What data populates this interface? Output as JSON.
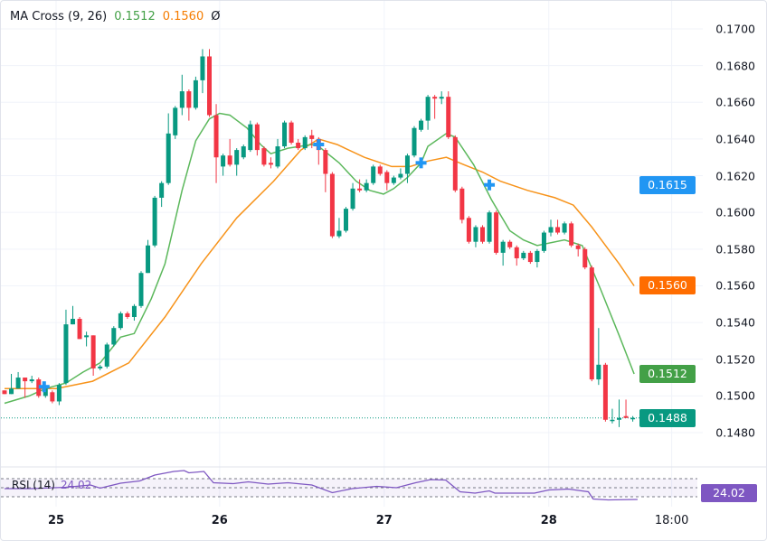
{
  "legend": {
    "name": "MA Cross (9, 26)",
    "fast_value": "0.1512",
    "slow_value": "0.1560",
    "symbol": "Ø"
  },
  "rsi": {
    "label": "RSI (14)",
    "value": "24.02",
    "levels": [
      70,
      50,
      30
    ]
  },
  "colors": {
    "up": "#089981",
    "down": "#f23645",
    "fast_ma": "#5cb85c",
    "slow_ma": "#f7931a",
    "cross": "#2196f3",
    "rsi": "#7e57c2",
    "last_price": "#089981"
  },
  "price_tags": [
    {
      "label": "0.1615",
      "value": 0.1615,
      "color": "#2196f3"
    },
    {
      "label": "0.1560",
      "value": 0.156,
      "color": "#ff6d00"
    },
    {
      "label": "0.1512",
      "value": 0.1512,
      "color": "#43a047"
    },
    {
      "label": "0.1488",
      "value": 0.1488,
      "color": "#089981"
    }
  ],
  "rsi_tag": "24.02",
  "chart_data": {
    "type": "candlestick",
    "title": "MA Cross (9, 26)",
    "ylim": [
      0.148,
      0.17
    ],
    "grid": true,
    "y_ticks": [
      "0.1700",
      "0.1680",
      "0.1660",
      "0.1640",
      "0.1620",
      "0.1600",
      "0.1580",
      "0.1560",
      "0.1540",
      "0.1520",
      "0.1500",
      "0.1480"
    ],
    "x_ticks": [
      {
        "label": "25",
        "x": 7.55
      },
      {
        "label": "26",
        "x": 31.5
      },
      {
        "label": "27",
        "x": 55.6
      },
      {
        "label": "28",
        "x": 79.7
      },
      {
        "label": "18:00",
        "x": 97.7
      }
    ],
    "candles_ohlc": [
      [
        0.1503,
        0.1503,
        0.1501,
        0.1501
      ],
      [
        0.1501,
        0.1512,
        0.1501,
        0.1504
      ],
      [
        0.1504,
        0.1513,
        0.1504,
        0.151
      ],
      [
        0.151,
        0.151,
        0.1499,
        0.1508
      ],
      [
        0.1508,
        0.1511,
        0.1507,
        0.1509
      ],
      [
        0.1509,
        0.151,
        0.1499,
        0.15
      ],
      [
        0.15,
        0.1505,
        0.1499,
        0.1504
      ],
      [
        0.1502,
        0.1503,
        0.1496,
        0.1497
      ],
      [
        0.1497,
        0.1507,
        0.1495,
        0.1506
      ],
      [
        0.1507,
        0.1547,
        0.1506,
        0.1539
      ],
      [
        0.1539,
        0.1549,
        0.1539,
        0.1542
      ],
      [
        0.1542,
        0.1543,
        0.1531,
        0.1531
      ],
      [
        0.1532,
        0.1535,
        0.1527,
        0.1533
      ],
      [
        0.1533,
        0.1533,
        0.1511,
        0.1515
      ],
      [
        0.1515,
        0.1517,
        0.1514,
        0.1516
      ],
      [
        0.1516,
        0.1529,
        0.1515,
        0.1528
      ],
      [
        0.1528,
        0.1538,
        0.1527,
        0.1537
      ],
      [
        0.1537,
        0.1546,
        0.1536,
        0.1545
      ],
      [
        0.1545,
        0.1546,
        0.1542,
        0.1543
      ],
      [
        0.1543,
        0.155,
        0.1541,
        0.1549
      ],
      [
        0.1549,
        0.1568,
        0.1548,
        0.1567
      ],
      [
        0.1567,
        0.1585,
        0.1567,
        0.1582
      ],
      [
        0.1582,
        0.1609,
        0.1581,
        0.1608
      ],
      [
        0.1608,
        0.1617,
        0.1603,
        0.1616
      ],
      [
        0.1616,
        0.1654,
        0.1615,
        0.1643
      ],
      [
        0.1642,
        0.1658,
        0.164,
        0.1657
      ],
      [
        0.1657,
        0.1675,
        0.1653,
        0.1666
      ],
      [
        0.1666,
        0.1667,
        0.165,
        0.1657
      ],
      [
        0.1657,
        0.1674,
        0.1656,
        0.1672
      ],
      [
        0.1672,
        0.1689,
        0.1665,
        0.1685
      ],
      [
        0.1685,
        0.1689,
        0.1652,
        0.1653
      ],
      [
        0.1653,
        0.1659,
        0.1616,
        0.163
      ],
      [
        0.1625,
        0.1632,
        0.162,
        0.1631
      ],
      [
        0.1631,
        0.164,
        0.1625,
        0.1626
      ],
      [
        0.1626,
        0.1635,
        0.162,
        0.1634
      ],
      [
        0.163,
        0.1637,
        0.1629,
        0.1636
      ],
      [
        0.1634,
        0.165,
        0.1633,
        0.1648
      ],
      [
        0.1648,
        0.1649,
        0.1631,
        0.1634
      ],
      [
        0.1635,
        0.1636,
        0.1625,
        0.1626
      ],
      [
        0.1627,
        0.163,
        0.1624,
        0.1626
      ],
      [
        0.1625,
        0.164,
        0.1624,
        0.1636
      ],
      [
        0.1636,
        0.165,
        0.1635,
        0.1649
      ],
      [
        0.1649,
        0.165,
        0.1637,
        0.1638
      ],
      [
        0.1638,
        0.164,
        0.1634,
        0.1635
      ],
      [
        0.1635,
        0.1642,
        0.1634,
        0.1641
      ],
      [
        0.1642,
        0.1645,
        0.1635,
        0.164
      ],
      [
        0.164,
        0.1641,
        0.1626,
        0.1634
      ],
      [
        0.1634,
        0.1635,
        0.1611,
        0.1621
      ],
      [
        0.1621,
        0.1622,
        0.1586,
        0.1587
      ],
      [
        0.1587,
        0.1597,
        0.1586,
        0.159
      ],
      [
        0.159,
        0.1603,
        0.1589,
        0.1602
      ],
      [
        0.1602,
        0.1616,
        0.1601,
        0.1613
      ],
      [
        0.1613,
        0.1618,
        0.1611,
        0.1612
      ],
      [
        0.1612,
        0.1618,
        0.1611,
        0.1616
      ],
      [
        0.1616,
        0.1626,
        0.1615,
        0.1625
      ],
      [
        0.1625,
        0.1626,
        0.162,
        0.1621
      ],
      [
        0.1622,
        0.1623,
        0.1612,
        0.1616
      ],
      [
        0.1616,
        0.162,
        0.1615,
        0.1619
      ],
      [
        0.1619,
        0.1624,
        0.1618,
        0.1621
      ],
      [
        0.1621,
        0.1632,
        0.1616,
        0.1631
      ],
      [
        0.1631,
        0.1647,
        0.163,
        0.1646
      ],
      [
        0.1645,
        0.1651,
        0.1644,
        0.165
      ],
      [
        0.165,
        0.1664,
        0.1645,
        0.1663
      ],
      [
        0.1663,
        0.1664,
        0.1651,
        0.1662
      ],
      [
        0.1662,
        0.1666,
        0.1659,
        0.1663
      ],
      [
        0.1663,
        0.1666,
        0.164,
        0.1641
      ],
      [
        0.1641,
        0.1642,
        0.1611,
        0.1612
      ],
      [
        0.1613,
        0.1614,
        0.1594,
        0.1596
      ],
      [
        0.1597,
        0.1598,
        0.1583,
        0.1584
      ],
      [
        0.1584,
        0.1593,
        0.1581,
        0.1592
      ],
      [
        0.1592,
        0.1593,
        0.1583,
        0.1584
      ],
      [
        0.1584,
        0.1601,
        0.1583,
        0.16
      ],
      [
        0.16,
        0.1601,
        0.1577,
        0.1578
      ],
      [
        0.1578,
        0.1585,
        0.1571,
        0.1584
      ],
      [
        0.1584,
        0.1585,
        0.158,
        0.1581
      ],
      [
        0.1581,
        0.1582,
        0.1571,
        0.1575
      ],
      [
        0.1575,
        0.1579,
        0.1574,
        0.1578
      ],
      [
        0.1578,
        0.1579,
        0.1572,
        0.1573
      ],
      [
        0.1573,
        0.158,
        0.157,
        0.1579
      ],
      [
        0.1579,
        0.159,
        0.1578,
        0.1589
      ],
      [
        0.1589,
        0.1596,
        0.1587,
        0.1592
      ],
      [
        0.1592,
        0.1596,
        0.1588,
        0.1589
      ],
      [
        0.1589,
        0.1595,
        0.1588,
        0.1594
      ],
      [
        0.1594,
        0.1595,
        0.1581,
        0.1582
      ],
      [
        0.1582,
        0.1583,
        0.1576,
        0.158
      ],
      [
        0.158,
        0.1581,
        0.1569,
        0.157
      ],
      [
        0.157,
        0.1571,
        0.1508,
        0.1509
      ],
      [
        0.1509,
        0.1537,
        0.1506,
        0.1517
      ],
      [
        0.1517,
        0.1518,
        0.1486,
        0.1487
      ],
      [
        0.1487,
        0.1493,
        0.1485,
        0.1487
      ],
      [
        0.1487,
        0.1498,
        0.1483,
        0.1488
      ],
      [
        0.1489,
        0.1498,
        0.1488,
        0.1488
      ],
      [
        0.1488,
        0.1489,
        0.1486,
        0.1488
      ]
    ],
    "series": [
      {
        "name": "MA 9",
        "points": [
          [
            0,
            0.1496
          ],
          [
            3.6,
            0.15
          ],
          [
            6,
            0.1504
          ],
          [
            9,
            0.1507
          ],
          [
            11.5,
            0.1513
          ],
          [
            14,
            0.1518
          ],
          [
            17,
            0.1532
          ],
          [
            19,
            0.1534
          ],
          [
            21.5,
            0.1553
          ],
          [
            23.5,
            0.1572
          ],
          [
            26,
            0.1612
          ],
          [
            28,
            0.1639
          ],
          [
            30,
            0.1651
          ],
          [
            31.5,
            0.1654
          ],
          [
            33,
            0.1653
          ],
          [
            35.5,
            0.1646
          ],
          [
            37.5,
            0.1637
          ],
          [
            39,
            0.1632
          ],
          [
            41.5,
            0.1635
          ],
          [
            45,
            0.1637
          ],
          [
            46,
            0.1636
          ],
          [
            49,
            0.1627
          ],
          [
            51.5,
            0.1617
          ],
          [
            53.5,
            0.1612
          ],
          [
            55.5,
            0.161
          ],
          [
            57,
            0.1613
          ],
          [
            59,
            0.1619
          ],
          [
            61,
            0.1627
          ],
          [
            62,
            0.1636
          ],
          [
            64.7,
            0.1643
          ],
          [
            66,
            0.1641
          ],
          [
            68.7,
            0.1626
          ],
          [
            71.3,
            0.1607
          ],
          [
            74,
            0.159
          ],
          [
            76,
            0.1585
          ],
          [
            78,
            0.1582
          ],
          [
            82,
            0.1585
          ],
          [
            84.6,
            0.1582
          ],
          [
            87.3,
            0.1558
          ],
          [
            90,
            0.1533
          ],
          [
            92.2,
            0.1512
          ]
        ]
      },
      {
        "name": "MA 26",
        "points": [
          [
            0,
            0.1504
          ],
          [
            7.6,
            0.1504
          ],
          [
            12.9,
            0.1508
          ],
          [
            18.2,
            0.1518
          ],
          [
            23.5,
            0.1543
          ],
          [
            28.8,
            0.1572
          ],
          [
            34,
            0.1597
          ],
          [
            39.4,
            0.1617
          ],
          [
            43.4,
            0.1634
          ],
          [
            46,
            0.164
          ],
          [
            48.7,
            0.1637
          ],
          [
            52.7,
            0.163
          ],
          [
            56.7,
            0.1625
          ],
          [
            59.4,
            0.1625
          ],
          [
            62,
            0.1628
          ],
          [
            64.7,
            0.163
          ],
          [
            67.3,
            0.1626
          ],
          [
            70,
            0.1622
          ],
          [
            72.6,
            0.1617
          ],
          [
            76.6,
            0.1612
          ],
          [
            80.6,
            0.1608
          ],
          [
            83.3,
            0.1604
          ],
          [
            86,
            0.1592
          ],
          [
            90,
            0.1572
          ],
          [
            92.2,
            0.156
          ]
        ]
      }
    ],
    "crosses": [
      [
        5.8,
        0.1505
      ],
      [
        46,
        0.1637
      ],
      [
        61,
        0.1627
      ],
      [
        71,
        0.1615
      ]
    ],
    "last_price": 0.1488,
    "rsi_series": [
      [
        0,
        48
      ],
      [
        4,
        48
      ],
      [
        9,
        51
      ],
      [
        12.6,
        56
      ],
      [
        14,
        49
      ],
      [
        17,
        60
      ],
      [
        19.8,
        65
      ],
      [
        22,
        78
      ],
      [
        24.8,
        86
      ],
      [
        26.3,
        88
      ],
      [
        27,
        83
      ],
      [
        29.2,
        86
      ],
      [
        30.6,
        61
      ],
      [
        33.5,
        59
      ],
      [
        35.7,
        63
      ],
      [
        38.6,
        58
      ],
      [
        41.5,
        61
      ],
      [
        45,
        56
      ],
      [
        48,
        39
      ],
      [
        50.9,
        48
      ],
      [
        54.5,
        53
      ],
      [
        57.4,
        50
      ],
      [
        60.2,
        61
      ],
      [
        62.4,
        68
      ],
      [
        64.6,
        67
      ],
      [
        66.7,
        41
      ],
      [
        68.9,
        38
      ],
      [
        71,
        43
      ],
      [
        71.8,
        38
      ],
      [
        77.6,
        38
      ],
      [
        79.7,
        45
      ],
      [
        82.6,
        47
      ],
      [
        85.5,
        41
      ],
      [
        86.2,
        25
      ],
      [
        88.4,
        23
      ],
      [
        92.7,
        24
      ]
    ]
  }
}
